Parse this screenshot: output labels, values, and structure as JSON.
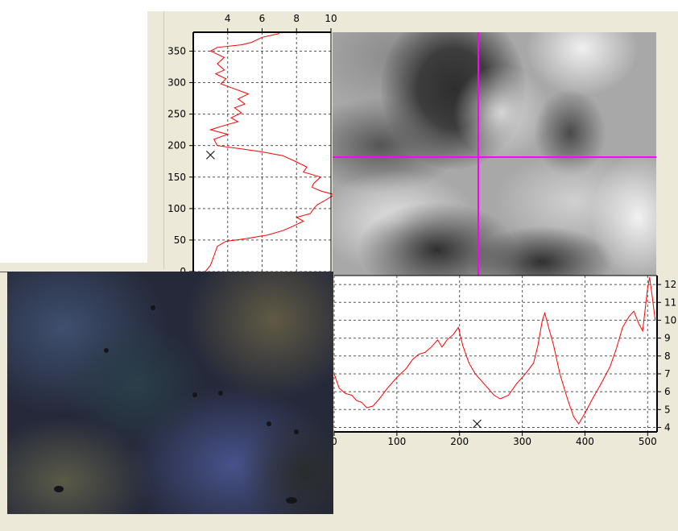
{
  "app": {
    "panel_color": "#ece9d8",
    "crosshair_color": "#ff00ff",
    "profile_color": "#ff0000"
  },
  "chart_data": [
    {
      "id": "vertical-profile",
      "type": "line",
      "orientation": "vertical",
      "title": "",
      "xlabel": "",
      "ylabel": "",
      "xlim": [
        2,
        10
      ],
      "ylim": [
        0,
        380
      ],
      "x_ticks": [
        "4",
        "6",
        "8",
        "10"
      ],
      "y_ticks": [
        "0",
        "50",
        "100",
        "150",
        "200",
        "250",
        "300",
        "350"
      ],
      "grid": true,
      "marker": {
        "x": 3,
        "y": 185
      },
      "points": [
        [
          2.7,
          0
        ],
        [
          3.0,
          10
        ],
        [
          3.2,
          25
        ],
        [
          3.4,
          40
        ],
        [
          3.9,
          48
        ],
        [
          5.0,
          52
        ],
        [
          6.3,
          58
        ],
        [
          7.2,
          65
        ],
        [
          7.8,
          72
        ],
        [
          8.4,
          80
        ],
        [
          8.0,
          86
        ],
        [
          8.8,
          92
        ],
        [
          9.0,
          100
        ],
        [
          9.2,
          106
        ],
        [
          9.6,
          112
        ],
        [
          10.2,
          122
        ],
        [
          9.4,
          128
        ],
        [
          8.9,
          134
        ],
        [
          9.0,
          140
        ],
        [
          9.4,
          150
        ],
        [
          8.4,
          158
        ],
        [
          8.6,
          166
        ],
        [
          8.0,
          174
        ],
        [
          7.2,
          184
        ],
        [
          6.0,
          190
        ],
        [
          5.0,
          194
        ],
        [
          3.4,
          200
        ],
        [
          3.2,
          210
        ],
        [
          4.0,
          218
        ],
        [
          3.0,
          225
        ],
        [
          3.8,
          232
        ],
        [
          4.6,
          238
        ],
        [
          4.2,
          244
        ],
        [
          4.8,
          252
        ],
        [
          4.4,
          260
        ],
        [
          5.0,
          266
        ],
        [
          4.6,
          274
        ],
        [
          5.2,
          282
        ],
        [
          4.4,
          290
        ],
        [
          3.6,
          298
        ],
        [
          3.9,
          306
        ],
        [
          3.3,
          314
        ],
        [
          3.8,
          320
        ],
        [
          3.4,
          330
        ],
        [
          3.8,
          340
        ],
        [
          3.0,
          350
        ],
        [
          3.4,
          356
        ],
        [
          4.8,
          360
        ],
        [
          5.4,
          364
        ],
        [
          6.0,
          372
        ],
        [
          7.0,
          378
        ]
      ]
    },
    {
      "id": "horizontal-profile",
      "type": "line",
      "orientation": "horizontal",
      "title": "",
      "xlabel": "",
      "ylabel": "",
      "xlim": [
        0,
        515
      ],
      "ylim": [
        3.75,
        12.5
      ],
      "x_ticks": [
        "0",
        "100",
        "200",
        "300",
        "400",
        "500"
      ],
      "y_ticks": [
        "4",
        "5",
        "6",
        "7",
        "8",
        "9",
        "10",
        "11",
        "12"
      ],
      "grid": true,
      "marker": {
        "x": 228,
        "y": 4.2
      },
      "points": [
        [
          0,
          7.0
        ],
        [
          8,
          6.2
        ],
        [
          18,
          5.9
        ],
        [
          28,
          5.8
        ],
        [
          36,
          5.5
        ],
        [
          44,
          5.4
        ],
        [
          52,
          5.1
        ],
        [
          62,
          5.2
        ],
        [
          72,
          5.6
        ],
        [
          85,
          6.2
        ],
        [
          100,
          6.8
        ],
        [
          115,
          7.3
        ],
        [
          125,
          7.8
        ],
        [
          135,
          8.1
        ],
        [
          145,
          8.2
        ],
        [
          155,
          8.5
        ],
        [
          165,
          8.9
        ],
        [
          172,
          8.5
        ],
        [
          180,
          8.9
        ],
        [
          190,
          9.2
        ],
        [
          198,
          9.6
        ],
        [
          205,
          8.6
        ],
        [
          215,
          7.6
        ],
        [
          225,
          7.0
        ],
        [
          240,
          6.4
        ],
        [
          255,
          5.8
        ],
        [
          265,
          5.6
        ],
        [
          278,
          5.8
        ],
        [
          290,
          6.4
        ],
        [
          305,
          7.0
        ],
        [
          318,
          7.6
        ],
        [
          325,
          8.6
        ],
        [
          332,
          10.0
        ],
        [
          336,
          10.4
        ],
        [
          342,
          9.6
        ],
        [
          350,
          8.6
        ],
        [
          360,
          7.0
        ],
        [
          372,
          5.6
        ],
        [
          382,
          4.6
        ],
        [
          390,
          4.2
        ],
        [
          400,
          4.8
        ],
        [
          412,
          5.6
        ],
        [
          425,
          6.4
        ],
        [
          440,
          7.4
        ],
        [
          450,
          8.4
        ],
        [
          460,
          9.6
        ],
        [
          470,
          10.2
        ],
        [
          478,
          10.5
        ],
        [
          486,
          9.8
        ],
        [
          492,
          9.4
        ],
        [
          496,
          10.6
        ],
        [
          500,
          11.8
        ],
        [
          503,
          12.4
        ],
        [
          507,
          11.4
        ],
        [
          512,
          10.0
        ]
      ]
    }
  ]
}
